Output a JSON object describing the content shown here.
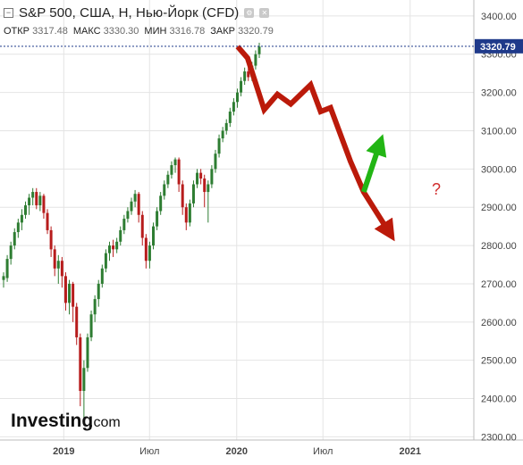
{
  "header": {
    "title": "S&P 500, США, H, Нью-Йорк (CFD)",
    "ohlc": [
      {
        "label": "ОТКР",
        "value": "3317.48"
      },
      {
        "label": "МАКС",
        "value": "3330.30"
      },
      {
        "label": "МИН",
        "value": "3316.78"
      },
      {
        "label": "ЗАКР",
        "value": "3320.79"
      }
    ]
  },
  "price_tag": "3320.79",
  "watermark": {
    "brand": "Investing",
    "suffix": ".com"
  },
  "annotation": {
    "question": "?"
  },
  "colors": {
    "up": "#2e7d32",
    "down": "#b71c1c",
    "forecast_red": "#bb1a0a",
    "forecast_green": "#22b514",
    "price_line": "#1f3a8a",
    "grid": "#e4e4e4"
  },
  "chart_data": {
    "type": "candlestick",
    "x_labels": [
      "2019",
      "Июл",
      "2020",
      "Июл",
      "2021"
    ],
    "y_ticks": [
      2300,
      2400,
      2500,
      2600,
      2700,
      2800,
      2900,
      3000,
      3100,
      3200,
      3300,
      3400
    ],
    "ylim": [
      2280,
      3430
    ],
    "last_price": 3320.79,
    "candles": [
      [
        2710,
        2720,
        2690,
        2730
      ],
      [
        2715,
        2765,
        2705,
        2775
      ],
      [
        2765,
        2800,
        2750,
        2810
      ],
      [
        2800,
        2835,
        2790,
        2845
      ],
      [
        2835,
        2860,
        2820,
        2870
      ],
      [
        2860,
        2880,
        2840,
        2895
      ],
      [
        2880,
        2905,
        2870,
        2915
      ],
      [
        2905,
        2925,
        2880,
        2935
      ],
      [
        2925,
        2940,
        2905,
        2950
      ],
      [
        2940,
        2905,
        2895,
        2950
      ],
      [
        2905,
        2930,
        2890,
        2940
      ],
      [
        2930,
        2885,
        2870,
        2935
      ],
      [
        2885,
        2840,
        2830,
        2895
      ],
      [
        2840,
        2790,
        2770,
        2850
      ],
      [
        2790,
        2740,
        2720,
        2800
      ],
      [
        2740,
        2760,
        2700,
        2775
      ],
      [
        2760,
        2720,
        2690,
        2770
      ],
      [
        2720,
        2650,
        2630,
        2730
      ],
      [
        2650,
        2700,
        2620,
        2710
      ],
      [
        2700,
        2640,
        2600,
        2705
      ],
      [
        2640,
        2560,
        2540,
        2650
      ],
      [
        2560,
        2420,
        2380,
        2570
      ],
      [
        2420,
        2480,
        2350,
        2500
      ],
      [
        2480,
        2560,
        2470,
        2570
      ],
      [
        2560,
        2620,
        2550,
        2630
      ],
      [
        2620,
        2660,
        2600,
        2670
      ],
      [
        2660,
        2700,
        2640,
        2710
      ],
      [
        2700,
        2740,
        2690,
        2750
      ],
      [
        2740,
        2780,
        2730,
        2790
      ],
      [
        2780,
        2800,
        2760,
        2810
      ],
      [
        2800,
        2790,
        2770,
        2815
      ],
      [
        2790,
        2810,
        2780,
        2820
      ],
      [
        2810,
        2840,
        2800,
        2850
      ],
      [
        2840,
        2870,
        2830,
        2880
      ],
      [
        2870,
        2890,
        2860,
        2900
      ],
      [
        2890,
        2915,
        2880,
        2925
      ],
      [
        2915,
        2935,
        2900,
        2945
      ],
      [
        2935,
        2880,
        2860,
        2940
      ],
      [
        2880,
        2820,
        2800,
        2890
      ],
      [
        2820,
        2760,
        2740,
        2830
      ],
      [
        2760,
        2800,
        2740,
        2810
      ],
      [
        2800,
        2850,
        2790,
        2860
      ],
      [
        2850,
        2890,
        2840,
        2900
      ],
      [
        2890,
        2930,
        2880,
        2940
      ],
      [
        2930,
        2960,
        2920,
        2970
      ],
      [
        2960,
        2985,
        2950,
        2995
      ],
      [
        2985,
        3010,
        2975,
        3020
      ],
      [
        3010,
        3025,
        2990,
        3030
      ],
      [
        3025,
        2960,
        2940,
        3030
      ],
      [
        2960,
        2900,
        2880,
        2970
      ],
      [
        2900,
        2860,
        2840,
        2910
      ],
      [
        2860,
        2910,
        2850,
        2920
      ],
      [
        2910,
        2960,
        2900,
        2970
      ],
      [
        2960,
        2990,
        2950,
        3000
      ],
      [
        2990,
        2975,
        2960,
        3000
      ],
      [
        2975,
        2940,
        2900,
        2985
      ],
      [
        2940,
        2960,
        2860,
        2970
      ],
      [
        2960,
        3000,
        2950,
        3010
      ],
      [
        3000,
        3040,
        2990,
        3050
      ],
      [
        3040,
        3080,
        3030,
        3090
      ],
      [
        3080,
        3100,
        3070,
        3110
      ],
      [
        3100,
        3120,
        3090,
        3130
      ],
      [
        3120,
        3150,
        3110,
        3160
      ],
      [
        3150,
        3175,
        3140,
        3185
      ],
      [
        3175,
        3200,
        3160,
        3210
      ],
      [
        3200,
        3230,
        3190,
        3240
      ],
      [
        3230,
        3255,
        3220,
        3265
      ],
      [
        3255,
        3240,
        3230,
        3270
      ],
      [
        3240,
        3270,
        3230,
        3280
      ],
      [
        3270,
        3300,
        3260,
        3310
      ],
      [
        3300,
        3320,
        3290,
        3330
      ]
    ],
    "forecast": {
      "red_path": [
        {
          "x": "2020-01-03",
          "y": 3320
        },
        {
          "x": "2020-01-24",
          "y": 3290
        },
        {
          "x": "2020-02-28",
          "y": 3155
        },
        {
          "x": "2020-03-27",
          "y": 3195
        },
        {
          "x": "2020-04-24",
          "y": 3170
        },
        {
          "x": "2020-06-05",
          "y": 3220
        },
        {
          "x": "2020-06-26",
          "y": 3150
        },
        {
          "x": "2020-07-17",
          "y": 3160
        },
        {
          "x": "2020-08-28",
          "y": 3020
        },
        {
          "x": "2020-09-25",
          "y": 2940
        },
        {
          "x": "2020-11-20",
          "y": 2830
        }
      ],
      "green_path": [
        {
          "x": "2020-09-25",
          "y": 2940
        },
        {
          "x": "2020-10-30",
          "y": 3070
        }
      ]
    }
  }
}
